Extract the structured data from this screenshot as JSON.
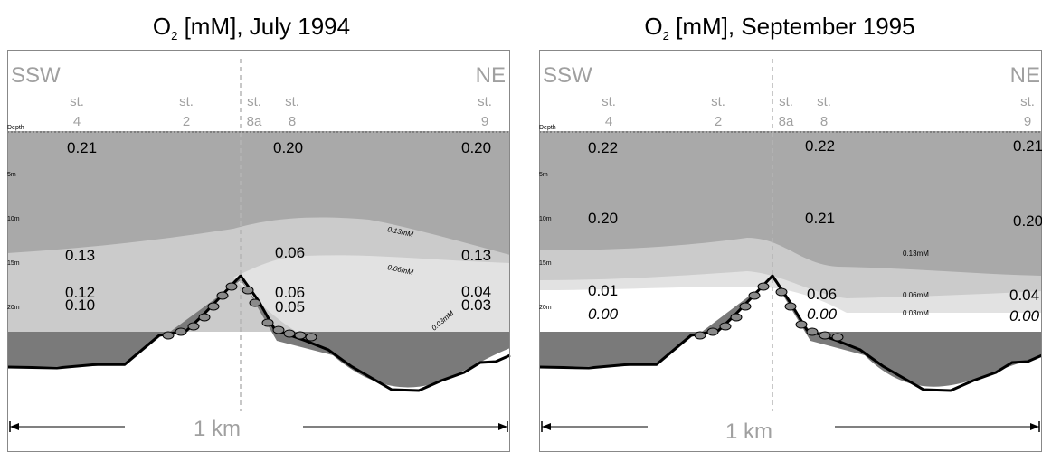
{
  "panels": [
    {
      "title_prefix": "O",
      "title_sub": "2",
      "title_suffix": " [mM], July 1994",
      "dir_left": "SSW",
      "dir_right": "NE",
      "depth_label": "Depth",
      "stations": [
        {
          "prefix": "st.",
          "id": "4"
        },
        {
          "prefix": "st.",
          "id": "2"
        },
        {
          "prefix": "st.",
          "id": "8a"
        },
        {
          "prefix": "st.",
          "id": "8"
        },
        {
          "prefix": "st.",
          "id": "9"
        }
      ],
      "depth_ticks": [
        "5m",
        "10m",
        "15m",
        "20m"
      ],
      "values": [
        "0.21",
        "0.20",
        "0.20",
        "0.13",
        "0.06",
        "0.13",
        "0.12",
        "0.10",
        "0.06",
        "0.05",
        "0.04",
        "0.03"
      ],
      "contour_labels": [
        "0.13mM",
        "0.06mM",
        "0.03mM"
      ],
      "scale_label": "1 km"
    },
    {
      "title_prefix": "O",
      "title_sub": "2",
      "title_suffix": " [mM], September 1995",
      "dir_left": "SSW",
      "dir_right": "NE",
      "depth_label": "Depth",
      "stations": [
        {
          "prefix": "st.",
          "id": "4"
        },
        {
          "prefix": "st.",
          "id": "2"
        },
        {
          "prefix": "st.",
          "id": "8a"
        },
        {
          "prefix": "st.",
          "id": "8"
        },
        {
          "prefix": "st.",
          "id": "9"
        }
      ],
      "depth_ticks": [
        "5m",
        "10m",
        "15m",
        "20m"
      ],
      "values": [
        "0.22",
        "0.22",
        "0.21",
        "0.20",
        "0.21",
        "0.20",
        "0.13mM",
        "0.01",
        "0.06",
        "0.06mM",
        "0.04",
        "0.03mM",
        "0.00",
        "0.00",
        "0.00"
      ],
      "scale_label": "1 km"
    }
  ],
  "colors": {
    "surface_water": "#a9a9a9",
    "mid_water": "#cbcbcb",
    "low_water": "#e2e2e2",
    "sediment": "#7a7a7a",
    "label_gray": "#a0a0a0"
  }
}
